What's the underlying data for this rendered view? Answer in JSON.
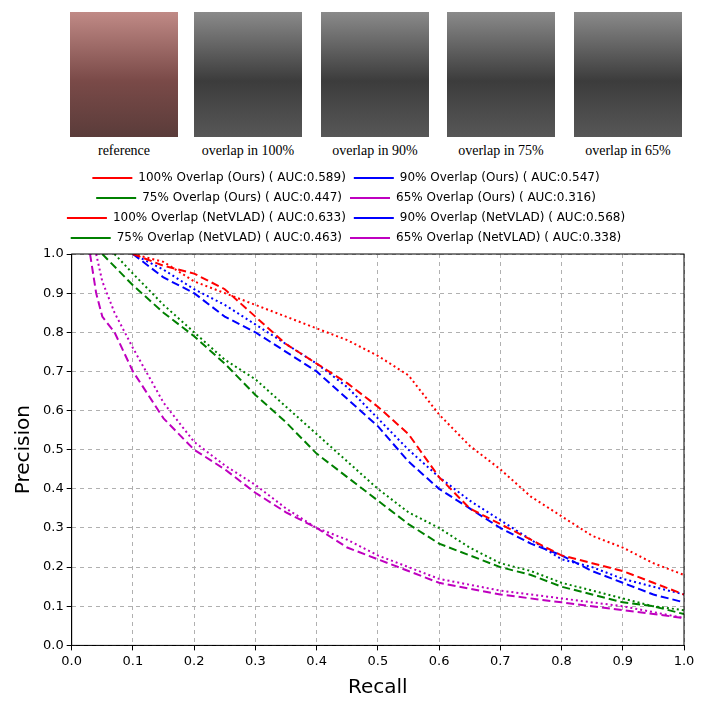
{
  "images": {
    "captions": [
      "reference",
      "overlap in 100%",
      "overlap in 90%",
      "overlap in 75%",
      "overlap in 65%"
    ]
  },
  "chart_data": {
    "type": "line",
    "x_label": "Recall",
    "y_label": "Precision",
    "xlim": [
      0,
      1
    ],
    "ylim": [
      0,
      1
    ],
    "xticks": [
      {
        "value": 0,
        "label": "0.0"
      },
      0.1,
      0.2,
      0.3,
      0.4,
      0.5,
      0.6,
      0.7,
      0.8,
      0.9,
      {
        "value": 1,
        "label": "1.0"
      }
    ],
    "yticks": [
      {
        "value": 0,
        "label": "0.0"
      },
      0.1,
      0.2,
      0.3,
      0.4,
      0.5,
      0.6,
      0.7,
      0.8,
      0.9,
      {
        "value": 1,
        "label": "1.0"
      }
    ],
    "grid": true,
    "legend": "top",
    "series": [
      {
        "name": "100% Overlap (Ours) ( AUC:0.589)",
        "color": "#ff0000",
        "line_style": "dashed",
        "x": [
          0.1,
          0.15,
          0.2,
          0.25,
          0.3,
          0.35,
          0.4,
          0.45,
          0.5,
          0.55,
          0.6,
          0.65,
          0.7,
          0.75,
          0.8,
          0.85,
          0.9,
          0.95,
          1.0
        ],
        "values": [
          1.0,
          0.97,
          0.95,
          0.91,
          0.84,
          0.77,
          0.72,
          0.67,
          0.61,
          0.54,
          0.43,
          0.35,
          0.31,
          0.27,
          0.23,
          0.21,
          0.19,
          0.16,
          0.13
        ]
      },
      {
        "name": "90% Overlap (Ours) ( AUC:0.547)",
        "color": "#0000ff",
        "line_style": "dashed",
        "x": [
          0.1,
          0.15,
          0.2,
          0.25,
          0.3,
          0.35,
          0.4,
          0.45,
          0.5,
          0.55,
          0.6,
          0.65,
          0.7,
          0.75,
          0.8,
          0.85,
          0.9,
          0.95,
          1.0
        ],
        "values": [
          1.0,
          0.94,
          0.9,
          0.84,
          0.8,
          0.75,
          0.7,
          0.63,
          0.56,
          0.47,
          0.4,
          0.35,
          0.3,
          0.26,
          0.23,
          0.19,
          0.16,
          0.13,
          0.11
        ]
      },
      {
        "name": "75% Overlap (Ours) ( AUC:0.447)",
        "color": "#008000",
        "line_style": "dashed",
        "x": [
          0.05,
          0.1,
          0.15,
          0.2,
          0.25,
          0.3,
          0.35,
          0.4,
          0.45,
          0.5,
          0.55,
          0.6,
          0.65,
          0.7,
          0.75,
          0.8,
          0.85,
          0.9,
          0.95,
          1.0
        ],
        "values": [
          1.0,
          0.92,
          0.85,
          0.79,
          0.72,
          0.64,
          0.57,
          0.49,
          0.43,
          0.37,
          0.31,
          0.26,
          0.23,
          0.2,
          0.18,
          0.15,
          0.13,
          0.11,
          0.1,
          0.08
        ]
      },
      {
        "name": "65% Overlap (Ours) ( AUC:0.316)",
        "color": "#bf00bf",
        "line_style": "dashed",
        "x": [
          0.03,
          0.04,
          0.05,
          0.07,
          0.1,
          0.15,
          0.2,
          0.25,
          0.3,
          0.35,
          0.4,
          0.45,
          0.5,
          0.55,
          0.6,
          0.7,
          0.8,
          0.9,
          1.0
        ],
        "values": [
          1.0,
          0.9,
          0.84,
          0.8,
          0.7,
          0.58,
          0.5,
          0.45,
          0.39,
          0.34,
          0.3,
          0.25,
          0.22,
          0.19,
          0.16,
          0.13,
          0.11,
          0.09,
          0.07
        ]
      },
      {
        "name": "100% Overlap (NetVLAD) ( AUC:0.633)",
        "color": "#ff0000",
        "line_style": "dotted",
        "x": [
          0.1,
          0.15,
          0.2,
          0.25,
          0.3,
          0.35,
          0.4,
          0.45,
          0.5,
          0.55,
          0.6,
          0.65,
          0.7,
          0.75,
          0.8,
          0.85,
          0.9,
          0.95,
          1.0
        ],
        "values": [
          1.0,
          0.98,
          0.93,
          0.9,
          0.87,
          0.84,
          0.81,
          0.78,
          0.74,
          0.69,
          0.59,
          0.51,
          0.45,
          0.38,
          0.33,
          0.28,
          0.25,
          0.21,
          0.18
        ]
      },
      {
        "name": "90% Overlap (NetVLAD) ( AUC:0.568)",
        "color": "#0000ff",
        "line_style": "dotted",
        "x": [
          0.1,
          0.15,
          0.2,
          0.25,
          0.3,
          0.35,
          0.4,
          0.45,
          0.5,
          0.55,
          0.6,
          0.65,
          0.7,
          0.75,
          0.8,
          0.85,
          0.9,
          0.95,
          1.0
        ],
        "values": [
          1.0,
          0.96,
          0.91,
          0.87,
          0.82,
          0.77,
          0.72,
          0.66,
          0.58,
          0.5,
          0.43,
          0.37,
          0.32,
          0.27,
          0.22,
          0.2,
          0.17,
          0.15,
          0.13
        ]
      },
      {
        "name": "75% Overlap (NetVLAD) ( AUC:0.463)",
        "color": "#008000",
        "line_style": "dotted",
        "x": [
          0.07,
          0.1,
          0.15,
          0.2,
          0.25,
          0.3,
          0.35,
          0.4,
          0.45,
          0.5,
          0.55,
          0.6,
          0.65,
          0.7,
          0.75,
          0.8,
          0.85,
          0.9,
          0.95,
          1.0
        ],
        "values": [
          1.0,
          0.95,
          0.87,
          0.8,
          0.73,
          0.68,
          0.61,
          0.54,
          0.47,
          0.4,
          0.34,
          0.3,
          0.25,
          0.21,
          0.19,
          0.16,
          0.14,
          0.12,
          0.1,
          0.09
        ]
      },
      {
        "name": "65% Overlap (NetVLAD) ( AUC:0.338)",
        "color": "#bf00bf",
        "line_style": "dotted",
        "x": [
          0.04,
          0.05,
          0.07,
          0.1,
          0.15,
          0.2,
          0.25,
          0.3,
          0.35,
          0.4,
          0.45,
          0.5,
          0.55,
          0.6,
          0.7,
          0.8,
          0.9,
          1.0
        ],
        "values": [
          1.0,
          0.93,
          0.85,
          0.76,
          0.62,
          0.52,
          0.46,
          0.41,
          0.35,
          0.3,
          0.27,
          0.23,
          0.2,
          0.17,
          0.14,
          0.12,
          0.1,
          0.07
        ]
      }
    ]
  }
}
